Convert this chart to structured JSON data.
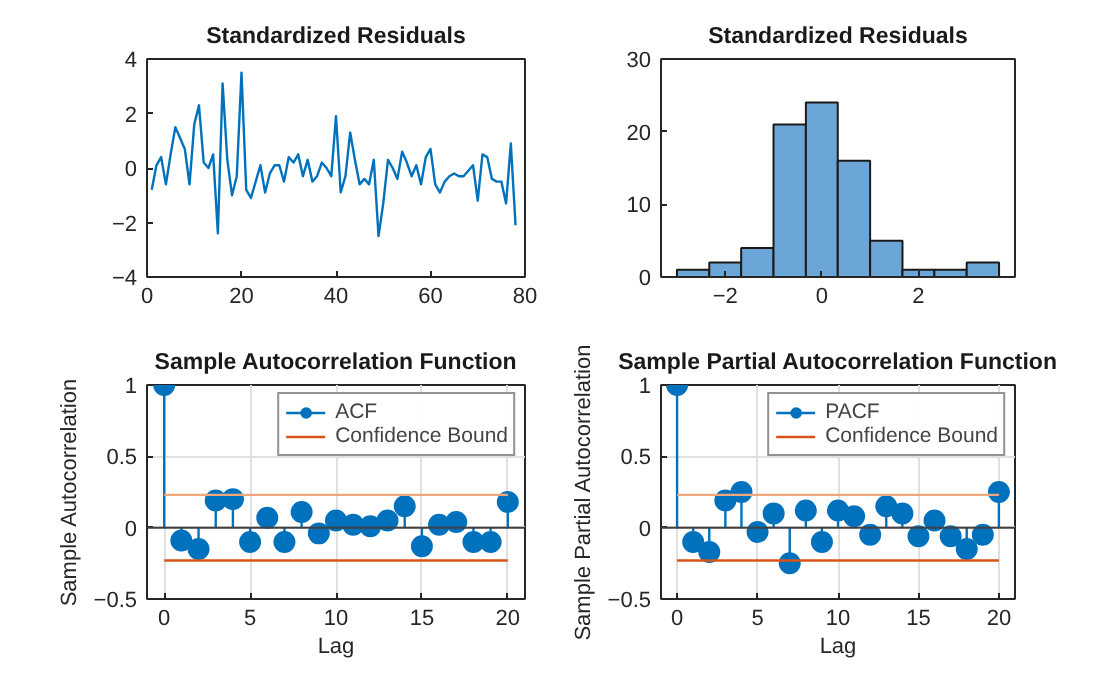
{
  "chart_data": [
    {
      "type": "line",
      "title": "Standardized Residuals",
      "x": [
        1,
        2,
        3,
        4,
        5,
        6,
        7,
        8,
        9,
        10,
        11,
        12,
        13,
        14,
        15,
        16,
        17,
        18,
        19,
        20,
        21,
        22,
        23,
        24,
        25,
        26,
        27,
        28,
        29,
        30,
        31,
        32,
        33,
        34,
        35,
        36,
        37,
        38,
        39,
        40,
        41,
        42,
        43,
        44,
        45,
        46,
        47,
        48,
        49,
        50,
        51,
        52,
        53,
        54,
        55,
        56,
        57,
        58,
        59,
        60,
        61,
        62,
        63,
        64,
        65,
        66,
        67,
        68,
        69,
        70,
        71,
        72,
        73,
        74,
        75,
        76,
        77,
        78
      ],
      "values": [
        -0.8,
        0.1,
        0.4,
        -0.6,
        0.5,
        1.5,
        1.1,
        0.7,
        -0.6,
        1.6,
        2.3,
        0.2,
        0.0,
        0.5,
        -2.4,
        3.1,
        0.3,
        -1.0,
        -0.3,
        3.5,
        -0.8,
        -1.1,
        -0.5,
        0.1,
        -0.9,
        -0.2,
        0.1,
        0.1,
        -0.5,
        0.4,
        0.2,
        0.5,
        -0.3,
        0.3,
        -0.5,
        -0.3,
        0.2,
        0.0,
        -0.3,
        1.9,
        -0.9,
        -0.3,
        1.3,
        0.3,
        -0.6,
        -0.4,
        -0.6,
        0.3,
        -2.5,
        -1.3,
        0.3,
        0.0,
        -0.4,
        0.6,
        0.2,
        -0.3,
        0.1,
        -0.6,
        0.4,
        0.7,
        -0.6,
        -0.9,
        -0.5,
        -0.3,
        -0.2,
        -0.3,
        -0.3,
        -0.1,
        0.1,
        -1.2,
        0.5,
        0.4,
        -0.4,
        -0.5,
        -0.5,
        -1.3,
        0.9,
        -2.1
      ],
      "color": "#0072bd",
      "xlim": [
        0,
        80
      ],
      "xticks": [
        0,
        20,
        40,
        60,
        80
      ],
      "ylim": [
        -4,
        4
      ],
      "yticks": [
        -4,
        -2,
        0,
        2,
        4
      ]
    },
    {
      "type": "histogram",
      "title": "Standardized Residuals",
      "bins": [
        -3.0,
        -2.33,
        -1.67,
        -1.0,
        -0.33,
        0.33,
        1.0,
        1.67,
        2.33,
        3.0,
        3.67
      ],
      "values": [
        1,
        2,
        4,
        21,
        24,
        16,
        5,
        1,
        1,
        2
      ],
      "color": "#6ca6d8",
      "xlim": [
        -3.33,
        4
      ],
      "xticks": [
        -2,
        0,
        2
      ],
      "ylim": [
        0,
        30
      ],
      "yticks": [
        0,
        10,
        20,
        30
      ]
    },
    {
      "type": "lollipop",
      "title": "Sample Autocorrelation Function",
      "xlabel": "Lag",
      "ylabel": "Sample Autocorrelation",
      "x": [
        0,
        1,
        2,
        3,
        4,
        5,
        6,
        7,
        8,
        9,
        10,
        11,
        12,
        13,
        14,
        15,
        16,
        17,
        18,
        19,
        20
      ],
      "series": [
        {
          "name": "ACF",
          "color": "#0072bd",
          "marker": "circle",
          "values": [
            1.0,
            -0.09,
            -0.15,
            0.19,
            0.2,
            -0.1,
            0.07,
            -0.1,
            0.11,
            -0.04,
            0.05,
            0.02,
            0.01,
            0.05,
            0.15,
            -0.13,
            0.02,
            0.04,
            -0.1,
            -0.1,
            0.18
          ]
        },
        {
          "type": "line",
          "color": "#f0a77c",
          "values": [
            0.23,
            0.23,
            0.23,
            0.23,
            0.23,
            0.23,
            0.23,
            0.23,
            0.23,
            0.23,
            0.23,
            0.23,
            0.23,
            0.23,
            0.23,
            0.23,
            0.23,
            0.23,
            0.23,
            0.23,
            0.23
          ]
        },
        {
          "type": "line",
          "name": "Confidence Bound",
          "color": "#d95319",
          "values": [
            -0.23,
            -0.23,
            -0.23,
            -0.23,
            -0.23,
            -0.23,
            -0.23,
            -0.23,
            -0.23,
            -0.23,
            -0.23,
            -0.23,
            -0.23,
            -0.23,
            -0.23,
            -0.23,
            -0.23,
            -0.23,
            -0.23,
            -0.23,
            -0.23
          ]
        }
      ],
      "ref_lines": [
        {
          "axis": "y",
          "value": 0,
          "color": "#404040"
        }
      ],
      "xlim": [
        -1,
        21
      ],
      "xticks": [
        0,
        5,
        10,
        15,
        20
      ],
      "ylim": [
        -0.5,
        1
      ],
      "yticks": [
        -0.5,
        0,
        0.5,
        1
      ],
      "grid": true,
      "legend": "top right"
    },
    {
      "type": "lollipop",
      "title": "Sample Partial Autocorrelation Function",
      "xlabel": "Lag",
      "ylabel": "Sample Partial Autocorrelation",
      "x": [
        0,
        1,
        2,
        3,
        4,
        5,
        6,
        7,
        8,
        9,
        10,
        11,
        12,
        13,
        14,
        15,
        16,
        17,
        18,
        19,
        20
      ],
      "series": [
        {
          "name": "PACF",
          "color": "#0072bd",
          "marker": "circle",
          "values": [
            1.0,
            -0.1,
            -0.17,
            0.19,
            0.25,
            -0.03,
            0.1,
            -0.25,
            0.12,
            -0.1,
            0.12,
            0.08,
            -0.05,
            0.15,
            0.1,
            -0.06,
            0.05,
            -0.06,
            -0.15,
            -0.05,
            0.25
          ]
        },
        {
          "type": "line",
          "color": "#f0a77c",
          "values": [
            0.23,
            0.23,
            0.23,
            0.23,
            0.23,
            0.23,
            0.23,
            0.23,
            0.23,
            0.23,
            0.23,
            0.23,
            0.23,
            0.23,
            0.23,
            0.23,
            0.23,
            0.23,
            0.23,
            0.23,
            0.23
          ]
        },
        {
          "type": "line",
          "name": "Confidence Bound",
          "color": "#d95319",
          "values": [
            -0.23,
            -0.23,
            -0.23,
            -0.23,
            -0.23,
            -0.23,
            -0.23,
            -0.23,
            -0.23,
            -0.23,
            -0.23,
            -0.23,
            -0.23,
            -0.23,
            -0.23,
            -0.23,
            -0.23,
            -0.23,
            -0.23,
            -0.23,
            -0.23
          ]
        }
      ],
      "ref_lines": [
        {
          "axis": "y",
          "value": 0,
          "color": "#404040"
        }
      ],
      "xlim": [
        -1,
        21
      ],
      "xticks": [
        0,
        5,
        10,
        15,
        20
      ],
      "ylim": [
        -0.5,
        1
      ],
      "yticks": [
        -0.5,
        0,
        0.5,
        1
      ],
      "grid": true,
      "legend": "top right"
    }
  ]
}
